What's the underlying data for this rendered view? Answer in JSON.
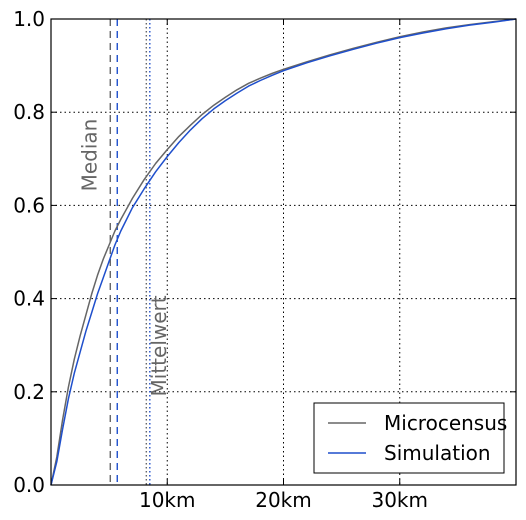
{
  "chart_data": {
    "type": "line",
    "title": "",
    "xlabel": "",
    "ylabel": "",
    "xlim": [
      0,
      40
    ],
    "ylim": [
      0,
      1
    ],
    "grid": true,
    "legend_placement": "bottom-right",
    "x_ticks": [
      {
        "value": 10,
        "label": "10km"
      },
      {
        "value": 20,
        "label": "20km"
      },
      {
        "value": 30,
        "label": "30km"
      }
    ],
    "y_ticks": [
      {
        "value": 0.0,
        "label": "0.0"
      },
      {
        "value": 0.2,
        "label": "0.2"
      },
      {
        "value": 0.4,
        "label": "0.4"
      },
      {
        "value": 0.6,
        "label": "0.6"
      },
      {
        "value": 0.8,
        "label": "0.8"
      },
      {
        "value": 1.0,
        "label": "1.0"
      }
    ],
    "series": [
      {
        "name": "Microcensus",
        "color": "#666666",
        "x": [
          0,
          0.5,
          1,
          1.5,
          2,
          2.5,
          3,
          3.5,
          4,
          4.5,
          5,
          5.5,
          6,
          7,
          8,
          9,
          10,
          11,
          12,
          13,
          14,
          15,
          16,
          17,
          18,
          19,
          20,
          22,
          24,
          26,
          28,
          30,
          32,
          34,
          36,
          38,
          40
        ],
        "values": [
          0,
          0.06,
          0.14,
          0.21,
          0.27,
          0.32,
          0.365,
          0.41,
          0.45,
          0.485,
          0.515,
          0.545,
          0.57,
          0.615,
          0.655,
          0.69,
          0.72,
          0.748,
          0.772,
          0.795,
          0.815,
          0.832,
          0.848,
          0.862,
          0.873,
          0.883,
          0.892,
          0.908,
          0.923,
          0.937,
          0.95,
          0.962,
          0.972,
          0.981,
          0.988,
          0.994,
          1.0
        ]
      },
      {
        "name": "Simulation",
        "color": "#1f4fcc",
        "x": [
          0,
          0.5,
          1,
          1.5,
          2,
          2.5,
          3,
          3.5,
          4,
          4.5,
          5,
          5.5,
          6,
          7,
          8,
          9,
          10,
          11,
          12,
          13,
          14,
          15,
          16,
          17,
          18,
          19,
          20,
          22,
          24,
          26,
          28,
          30,
          32,
          34,
          36,
          38,
          40
        ],
        "values": [
          0,
          0.05,
          0.12,
          0.185,
          0.24,
          0.285,
          0.33,
          0.37,
          0.41,
          0.445,
          0.48,
          0.515,
          0.545,
          0.595,
          0.635,
          0.672,
          0.705,
          0.735,
          0.762,
          0.786,
          0.807,
          0.825,
          0.841,
          0.856,
          0.868,
          0.879,
          0.889,
          0.906,
          0.921,
          0.935,
          0.948,
          0.96,
          0.97,
          0.979,
          0.987,
          0.993,
          1.0
        ]
      }
    ],
    "vertical_lines": [
      {
        "series": "Microcensus",
        "stat": "median",
        "x": 5.1,
        "style": "dashed",
        "color": "#666666"
      },
      {
        "series": "Simulation",
        "stat": "median",
        "x": 5.7,
        "style": "dashed",
        "color": "#1f4fcc"
      },
      {
        "series": "Microcensus",
        "stat": "mean",
        "x": 8.2,
        "style": "dotted",
        "color": "#666666"
      },
      {
        "series": "Simulation",
        "stat": "mean",
        "x": 8.5,
        "style": "dotted",
        "color": "#1f4fcc"
      }
    ],
    "annotations": [
      {
        "text": "Median",
        "x": 3.9,
        "y": 0.63,
        "rotation": -90,
        "color": "#666666"
      },
      {
        "text": "Mittelwert",
        "x": 9.9,
        "y": 0.19,
        "rotation": -90,
        "color": "#666666"
      }
    ]
  }
}
